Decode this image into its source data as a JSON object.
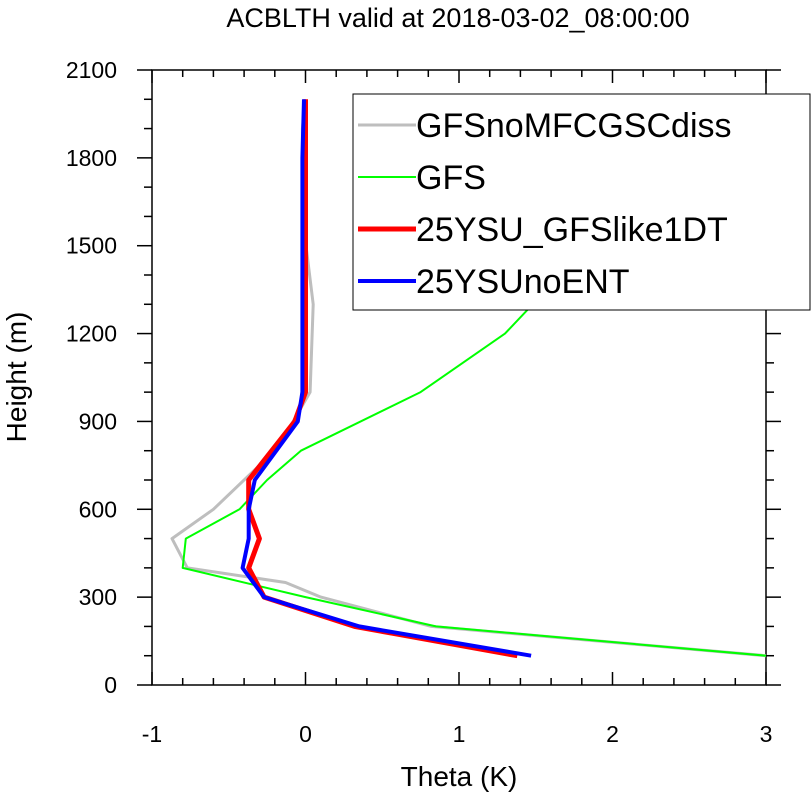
{
  "chart_data": {
    "type": "line",
    "title": "ACBLTH valid at 2018-03-02_08:00:00",
    "xlabel": "Theta (K)",
    "ylabel": "Height (m)",
    "xlim": [
      -1,
      3
    ],
    "ylim": [
      0,
      2100
    ],
    "xticks": [
      -1,
      0,
      1,
      2,
      3
    ],
    "yticks": [
      0,
      300,
      600,
      900,
      1200,
      1500,
      1800,
      2100
    ],
    "xtick_labels": [
      "-1",
      "0",
      "1",
      "2",
      "3"
    ],
    "ytick_labels": [
      "0",
      "300",
      "600",
      "900",
      "1200",
      "1500",
      "1800",
      "2100"
    ],
    "grid": false,
    "legend_position": "top-right",
    "series": [
      {
        "name": "GFSnoMFCGSCdiss",
        "color": "#bebebe",
        "width": 3,
        "x": [
          3.0,
          0.82,
          0.1,
          -0.13,
          -0.77,
          -0.87,
          -0.6,
          -0.2,
          -0.08,
          0.03,
          0.05,
          -0.02,
          -0.02,
          -0.02,
          0.0
        ],
        "y": [
          100,
          200,
          300,
          350,
          400,
          500,
          600,
          800,
          900,
          1000,
          1300,
          1600,
          1800,
          1900,
          2000
        ]
      },
      {
        "name": "GFS",
        "color": "#00ff00",
        "width": 2,
        "x": [
          3.0,
          0.85,
          0.0,
          -0.8,
          -0.78,
          -0.43,
          -0.25,
          -0.03,
          0.75,
          1.3,
          1.48,
          1.45,
          1.2,
          0.55
        ],
        "y": [
          100,
          200,
          300,
          400,
          500,
          600,
          700,
          800,
          1000,
          1200,
          1300,
          1500,
          1800,
          2000
        ]
      },
      {
        "name": "25YSU_GFSlike1DT",
        "color": "#ff0000",
        "width": 5,
        "x": [
          1.38,
          0.32,
          -0.27,
          -0.37,
          -0.3,
          -0.37,
          -0.37,
          -0.07,
          0.0,
          0.0,
          0.0,
          0.0
        ],
        "y": [
          100,
          200,
          300,
          400,
          500,
          600,
          700,
          900,
          1000,
          1200,
          1800,
          2000
        ]
      },
      {
        "name": "25YSUnoENT",
        "color": "#0000ff",
        "width": 4,
        "x": [
          1.47,
          0.35,
          -0.27,
          -0.41,
          -0.37,
          -0.37,
          -0.33,
          -0.05,
          -0.02,
          -0.02,
          -0.02,
          -0.01
        ],
        "y": [
          100,
          200,
          300,
          400,
          500,
          600,
          700,
          900,
          1000,
          1200,
          1800,
          2000
        ]
      }
    ]
  }
}
